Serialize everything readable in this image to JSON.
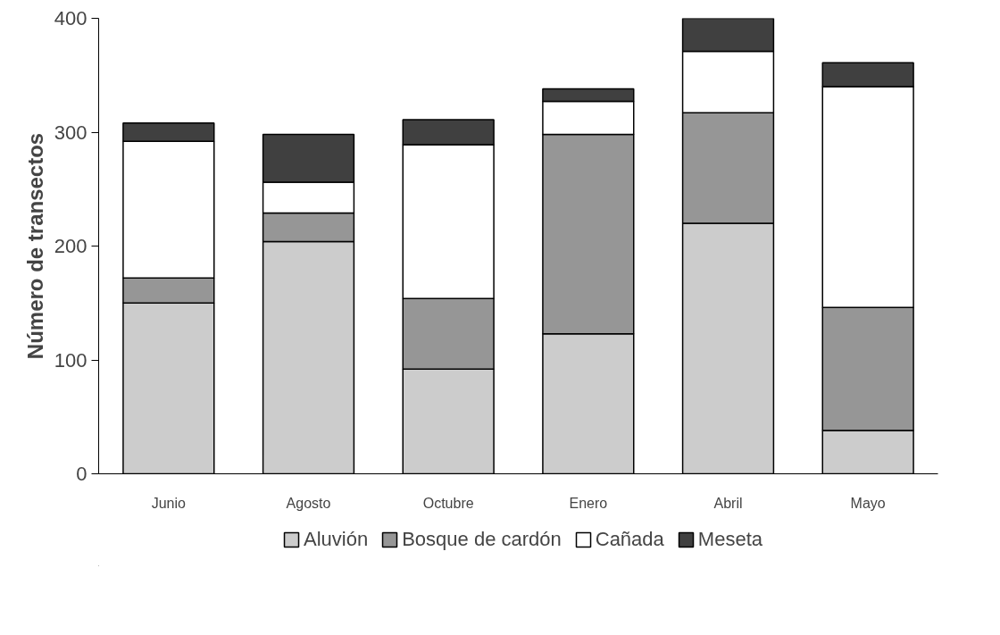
{
  "chart_data": {
    "type": "bar",
    "stacked": true,
    "ylabel": "Número de transectos",
    "categories": [
      "Junio",
      "Agosto",
      "Octubre",
      "Enero",
      "Abril",
      "Mayo"
    ],
    "series": [
      {
        "name": "Aluvión",
        "color": "#cccccc",
        "values": [
          150,
          204,
          92,
          123,
          220,
          38
        ]
      },
      {
        "name": "Bosque de cardón",
        "color": "#969696",
        "values": [
          22,
          25,
          62,
          175,
          97,
          108
        ]
      },
      {
        "name": "Cañada",
        "color": "#ffffff",
        "values": [
          120,
          27,
          135,
          29,
          54,
          194
        ]
      },
      {
        "name": "Meseta",
        "color": "#404040",
        "values": [
          16,
          42,
          22,
          11,
          30,
          21
        ]
      }
    ],
    "ylim": [
      0,
      400
    ],
    "yticks": [
      0,
      100,
      200,
      300,
      400
    ],
    "grid": false,
    "legend": "bottom"
  }
}
